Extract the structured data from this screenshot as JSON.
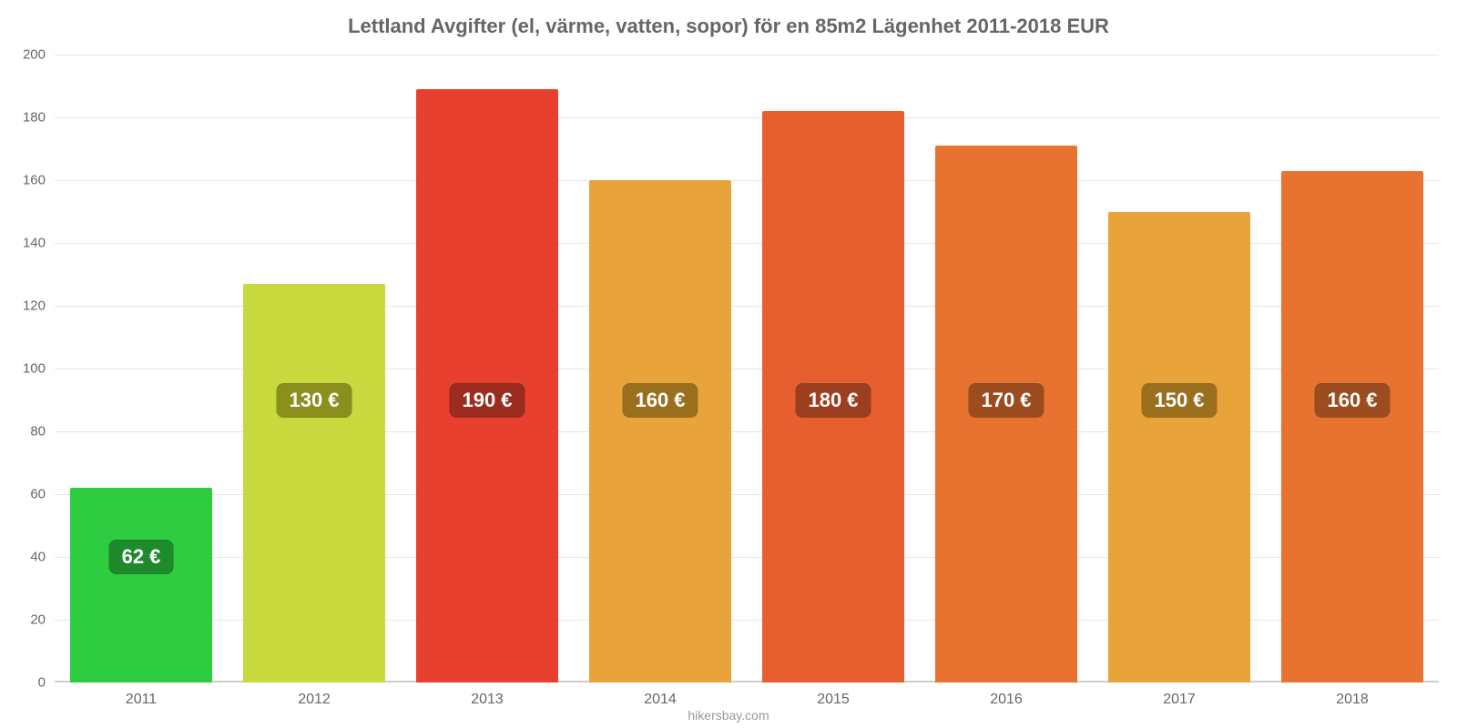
{
  "chart": {
    "type": "bar",
    "title": "Lettland Avgifter (el, värme, vatten, sopor) för en 85m2 Lägenhet 2011-2018 EUR",
    "title_fontsize": 22,
    "title_color": "#666666",
    "source": "hikersbay.com",
    "background_color": "#ffffff",
    "grid_color": "#e6e6e6",
    "baseline_color": "#cccccc",
    "axis_label_color": "#666666",
    "ylim": [
      0,
      200
    ],
    "ytick_step": 20,
    "yticks": [
      0,
      20,
      40,
      60,
      80,
      100,
      120,
      140,
      160,
      180,
      200
    ],
    "bar_width_pct": 82,
    "label_fontsize": 22,
    "data_label_y_value": 90,
    "categories": [
      "2011",
      "2012",
      "2013",
      "2014",
      "2015",
      "2016",
      "2017",
      "2018"
    ],
    "values": [
      62,
      127,
      189,
      160,
      182,
      171,
      150,
      163
    ],
    "bar_colors": [
      "#2ecc40",
      "#c7d93d",
      "#e8402f",
      "#e8a33a",
      "#e85f2f",
      "#e8722f",
      "#e8a33a",
      "#e8722f"
    ],
    "label_texts": [
      "62 €",
      "130 €",
      "190 €",
      "160 €",
      "180 €",
      "170 €",
      "150 €",
      "160 €"
    ],
    "label_bg_colors": [
      "#1e8a2b",
      "#8a8f1e",
      "#9c2b20",
      "#9c6f1e",
      "#9c3f20",
      "#9c4d20",
      "#9c6f1e",
      "#9c4d20"
    ],
    "first_label_y_value": 40
  }
}
